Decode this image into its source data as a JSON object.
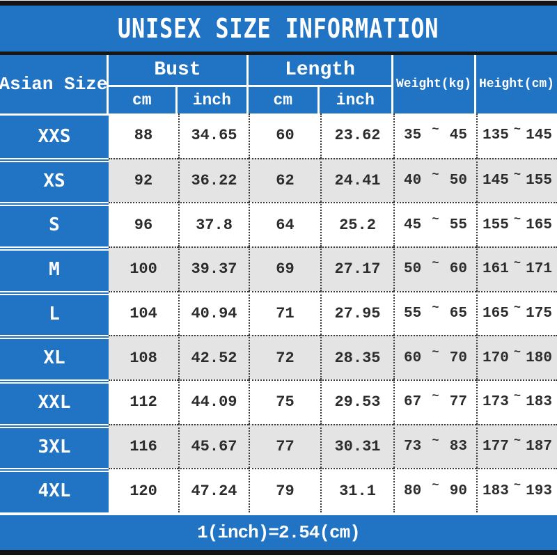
{
  "colors": {
    "blue": "#2173c4",
    "alt_row": "#e4e4e4",
    "black_bar": "#141414",
    "dotted_line": "#3a3a3a",
    "text_dark": "#2c2c2c"
  },
  "chart_data": {
    "type": "table",
    "title": "UNISEX SIZE INFORMATION",
    "corner_header": "Asian Size",
    "column_groups": [
      {
        "label": "Bust",
        "subs": [
          "cm",
          "inch"
        ]
      },
      {
        "label": "Length",
        "subs": [
          "cm",
          "inch"
        ]
      }
    ],
    "spanning_headers": [
      "Weight(kg)",
      "Height(cm)"
    ],
    "tilde": "~",
    "rows": [
      {
        "size": "XXS",
        "bust_cm": "88",
        "bust_inch": "34.65",
        "length_cm": "60",
        "length_inch": "23.62",
        "weight_min": "35",
        "weight_max": "45",
        "height_min": "135",
        "height_max": "145"
      },
      {
        "size": "XS",
        "bust_cm": "92",
        "bust_inch": "36.22",
        "length_cm": "62",
        "length_inch": "24.41",
        "weight_min": "40",
        "weight_max": "50",
        "height_min": "145",
        "height_max": "155"
      },
      {
        "size": "S",
        "bust_cm": "96",
        "bust_inch": "37.8",
        "length_cm": "64",
        "length_inch": "25.2",
        "weight_min": "45",
        "weight_max": "55",
        "height_min": "155",
        "height_max": "165"
      },
      {
        "size": "M",
        "bust_cm": "100",
        "bust_inch": "39.37",
        "length_cm": "69",
        "length_inch": "27.17",
        "weight_min": "50",
        "weight_max": "60",
        "height_min": "161",
        "height_max": "171"
      },
      {
        "size": "L",
        "bust_cm": "104",
        "bust_inch": "40.94",
        "length_cm": "71",
        "length_inch": "27.95",
        "weight_min": "55",
        "weight_max": "65",
        "height_min": "165",
        "height_max": "175"
      },
      {
        "size": "XL",
        "bust_cm": "108",
        "bust_inch": "42.52",
        "length_cm": "72",
        "length_inch": "28.35",
        "weight_min": "60",
        "weight_max": "70",
        "height_min": "170",
        "height_max": "180"
      },
      {
        "size": "XXL",
        "bust_cm": "112",
        "bust_inch": "44.09",
        "length_cm": "75",
        "length_inch": "29.53",
        "weight_min": "67",
        "weight_max": "77",
        "height_min": "173",
        "height_max": "183"
      },
      {
        "size": "3XL",
        "bust_cm": "116",
        "bust_inch": "45.67",
        "length_cm": "77",
        "length_inch": "30.31",
        "weight_min": "73",
        "weight_max": "83",
        "height_min": "177",
        "height_max": "187"
      },
      {
        "size": "4XL",
        "bust_cm": "120",
        "bust_inch": "47.24",
        "length_cm": "79",
        "length_inch": "31.1",
        "weight_min": "80",
        "weight_max": "90",
        "height_min": "183",
        "height_max": "193"
      }
    ],
    "footnote": "1(inch)=2.54(cm)"
  }
}
